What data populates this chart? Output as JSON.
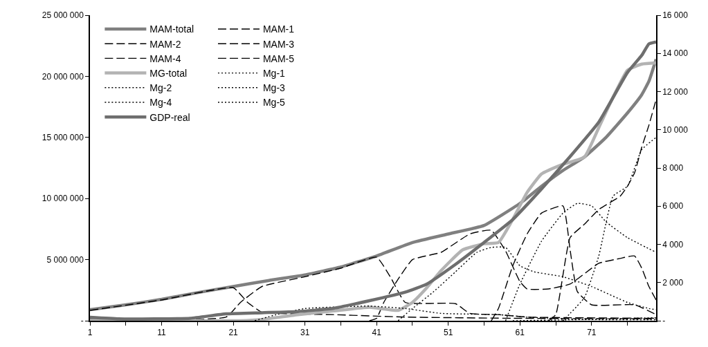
{
  "chart_data": {
    "type": "line",
    "legend": "top left",
    "xlim": [
      1,
      80
    ],
    "xticks": [
      1,
      {
        "value": 6,
        "label": null
      },
      11,
      {
        "value": 16,
        "label": null
      },
      21,
      {
        "value": 26,
        "label": null
      },
      31,
      {
        "value": 36,
        "label": null
      },
      41,
      {
        "value": 46,
        "label": null
      },
      51,
      {
        "value": 56,
        "label": null
      },
      61,
      {
        "value": 66,
        "label": null
      },
      71,
      {
        "value": 76,
        "label": null
      }
    ],
    "ylim": [
      0,
      25000000
    ],
    "yticks": [
      {
        "value": 0,
        "label": "-"
      },
      {
        "value": 5000000,
        "label": "5 000 000"
      },
      {
        "value": 10000000,
        "label": "10 000 000"
      },
      {
        "value": 15000000,
        "label": "15 000 000"
      },
      {
        "value": 20000000,
        "label": "20 000 000"
      },
      {
        "value": 25000000,
        "label": "25 000 000"
      }
    ],
    "y2lim": [
      0,
      16000
    ],
    "y2ticks": [
      {
        "value": 0,
        "label": "-"
      },
      {
        "value": 2000,
        "label": "2 000"
      },
      {
        "value": 4000,
        "label": "4 000"
      },
      {
        "value": 6000,
        "label": "6 000"
      },
      {
        "value": 8000,
        "label": "8 000"
      },
      {
        "value": 10000,
        "label": "10 000"
      },
      {
        "value": 12000,
        "label": "12 000"
      },
      {
        "value": 14000,
        "label": "14 000"
      },
      {
        "value": 16000,
        "label": "16 000"
      }
    ],
    "series": [
      {
        "name": "MAM-total",
        "color": "#808080",
        "line_style": "solid",
        "x": [
          1,
          6,
          11,
          16,
          21,
          26,
          31,
          36,
          41,
          46,
          51,
          56,
          61,
          64,
          67,
          70,
          73,
          76,
          78,
          79,
          80
        ],
        "values": [
          900000,
          1300000,
          1750000,
          2300000,
          2800000,
          3300000,
          3750000,
          4400000,
          5300000,
          6400000,
          7100000,
          7800000,
          9600000,
          11000000,
          12300000,
          13400000,
          15000000,
          17000000,
          18500000,
          19600000,
          21400000
        ]
      },
      {
        "name": "MAM-1",
        "color": "#000000",
        "line_style": "dashed",
        "x": [
          1,
          11,
          21,
          23,
          25,
          35,
          45,
          60,
          80
        ],
        "values": [
          850000,
          1700000,
          2700000,
          1500000,
          700000,
          500000,
          300000,
          200000,
          150000
        ]
      },
      {
        "name": "MAM-2",
        "color": "#000000",
        "line_style": "dashed",
        "x": [
          1,
          20,
          22,
          25,
          31,
          36,
          41,
          43,
          45,
          52,
          54,
          58,
          62,
          80
        ],
        "values": [
          100000,
          300000,
          1500000,
          2800000,
          3600000,
          4300000,
          5200000,
          3500000,
          1500000,
          1400000,
          600000,
          500000,
          300000,
          200000
        ]
      },
      {
        "name": "MAM-3",
        "color": "#000000",
        "line_style": "dashed",
        "x": [
          40,
          41,
          42,
          44,
          46,
          50,
          54,
          57,
          59,
          61,
          62,
          65,
          68,
          72,
          75,
          77,
          78,
          79,
          80
        ],
        "values": [
          0,
          200000,
          1500000,
          3400000,
          5000000,
          5600000,
          7100000,
          7400000,
          5700000,
          3200000,
          2600000,
          2600000,
          3000000,
          4700000,
          5100000,
          5300000,
          4300000,
          2800000,
          1700000
        ]
      },
      {
        "name": "MAM-4",
        "color": "#000000",
        "line_style": "dashed",
        "x": [
          57,
          58,
          60,
          62,
          64,
          67,
          68,
          69,
          71,
          77,
          80
        ],
        "values": [
          0,
          1000000,
          4500000,
          7100000,
          8800000,
          9400000,
          5800000,
          2400000,
          1300000,
          1300000,
          500000
        ]
      },
      {
        "name": "MAM-5",
        "color": "#000000",
        "line_style": "dashed",
        "x": [
          65,
          66,
          68,
          70,
          72,
          75,
          76,
          77,
          78,
          79,
          80
        ],
        "values": [
          0,
          500000,
          6800000,
          7900000,
          9100000,
          10200000,
          11000000,
          12100000,
          14200000,
          16000000,
          18100000
        ]
      },
      {
        "name": "MG-total",
        "color": "#b3b3b3",
        "line_style": "solid",
        "x": [
          1,
          22,
          25,
          30,
          35,
          40,
          44,
          46,
          48,
          50,
          53,
          56,
          58,
          60,
          62,
          64,
          67,
          70,
          72,
          74,
          76,
          78,
          80
        ],
        "values": [
          0,
          0,
          100000,
          500000,
          800000,
          1100000,
          850000,
          1500000,
          2700000,
          4100000,
          5800000,
          6300000,
          6400000,
          8300000,
          10500000,
          12000000,
          12800000,
          13400000,
          15800000,
          18300000,
          20500000,
          21000000,
          21100000
        ]
      },
      {
        "name": "Mg-1",
        "color": "#000000",
        "line_style": "dotted",
        "x": [
          24,
          27,
          31,
          40,
          45,
          50,
          58,
          62,
          70,
          80
        ],
        "values": [
          0,
          500000,
          1000000,
          1200000,
          1000000,
          600000,
          500000,
          300000,
          100000,
          80000
        ]
      },
      {
        "name": "Mg-2",
        "color": "#000000",
        "line_style": "dotted",
        "x": [
          44,
          46,
          49,
          52,
          55,
          57,
          59,
          61,
          63,
          67,
          71,
          76,
          79,
          80
        ],
        "values": [
          0,
          1000000,
          2400000,
          4000000,
          5600000,
          6000000,
          6000000,
          4500000,
          4000000,
          3600000,
          2800000,
          1500000,
          1000000,
          900000
        ]
      },
      {
        "name": "Mg-3",
        "color": "#000000",
        "line_style": "dotted",
        "x": [
          59,
          61,
          64,
          67,
          69,
          71,
          73,
          76,
          80
        ],
        "values": [
          0,
          3000000,
          6500000,
          8800000,
          9600000,
          9400000,
          8100000,
          6800000,
          5600000
        ]
      },
      {
        "name": "Mg-4",
        "color": "#000000",
        "line_style": "dotted",
        "x": [
          67,
          70,
          72,
          74,
          76,
          78,
          80
        ],
        "values": [
          0,
          1900000,
          5300000,
          10200000,
          11000000,
          14000000,
          15000000
        ]
      },
      {
        "name": "Mg-5",
        "color": "#000000",
        "line_style": "dotted",
        "x": [
          60,
          70,
          80
        ],
        "values": [
          0,
          100000,
          250000
        ]
      },
      {
        "name": "GDP-real",
        "color": "#6e6e6e",
        "line_style": "solid",
        "axis": "y2",
        "x": [
          1,
          5,
          10,
          15,
          20,
          25,
          30,
          35,
          40,
          45,
          48,
          52,
          56,
          60,
          64,
          68,
          72,
          76,
          78,
          79,
          80
        ],
        "values": [
          180,
          100,
          100,
          130,
          360,
          420,
          480,
          650,
          1050,
          1500,
          1920,
          2950,
          4100,
          5300,
          6900,
          8600,
          10400,
          13000,
          13900,
          14500,
          14600
        ]
      }
    ]
  }
}
